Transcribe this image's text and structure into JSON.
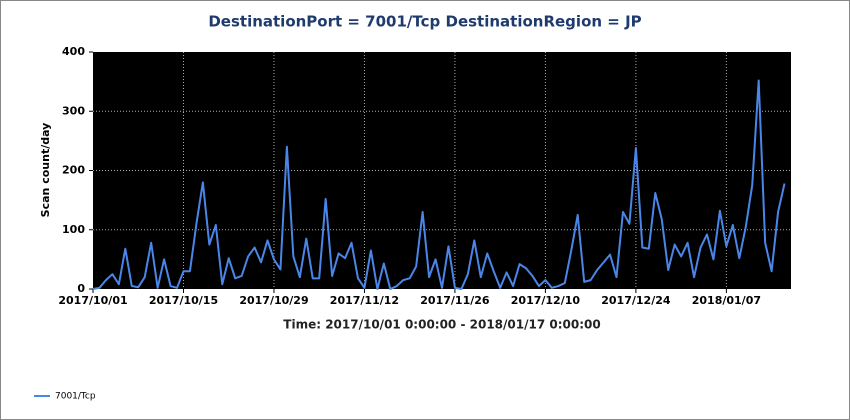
{
  "chart_data": {
    "type": "line",
    "title": "DestinationPort = 7001/Tcp  DestinationRegion = JP",
    "ylabel": "Scan count/day",
    "xlabel": "Time: 2017/10/01 0:00:00 - 2018/01/17 0:00:00",
    "x": [
      "2017/10/01",
      "2017/10/02",
      "2017/10/03",
      "2017/10/04",
      "2017/10/05",
      "2017/10/06",
      "2017/10/07",
      "2017/10/08",
      "2017/10/09",
      "2017/10/10",
      "2017/10/11",
      "2017/10/12",
      "2017/10/13",
      "2017/10/14",
      "2017/10/15",
      "2017/10/16",
      "2017/10/17",
      "2017/10/18",
      "2017/10/19",
      "2017/10/20",
      "2017/10/21",
      "2017/10/22",
      "2017/10/23",
      "2017/10/24",
      "2017/10/25",
      "2017/10/26",
      "2017/10/27",
      "2017/10/28",
      "2017/10/29",
      "2017/10/30",
      "2017/10/31",
      "2017/11/01",
      "2017/11/02",
      "2017/11/03",
      "2017/11/04",
      "2017/11/05",
      "2017/11/06",
      "2017/11/07",
      "2017/11/08",
      "2017/11/09",
      "2017/11/10",
      "2017/11/11",
      "2017/11/12",
      "2017/11/13",
      "2017/11/14",
      "2017/11/15",
      "2017/11/16",
      "2017/11/17",
      "2017/11/18",
      "2017/11/19",
      "2017/11/20",
      "2017/11/21",
      "2017/11/22",
      "2017/11/23",
      "2017/11/24",
      "2017/11/25",
      "2017/11/26",
      "2017/11/27",
      "2017/11/28",
      "2017/11/29",
      "2017/11/30",
      "2017/12/01",
      "2017/12/02",
      "2017/12/03",
      "2017/12/04",
      "2017/12/05",
      "2017/12/06",
      "2017/12/07",
      "2017/12/08",
      "2017/12/09",
      "2017/12/10",
      "2017/12/11",
      "2017/12/12",
      "2017/12/13",
      "2017/12/14",
      "2017/12/15",
      "2017/12/16",
      "2017/12/17",
      "2017/12/18",
      "2017/12/19",
      "2017/12/20",
      "2017/12/21",
      "2017/12/22",
      "2017/12/23",
      "2017/12/24",
      "2017/12/25",
      "2017/12/26",
      "2017/12/27",
      "2017/12/28",
      "2017/12/29",
      "2017/12/30",
      "2017/12/31",
      "2018/01/01",
      "2018/01/02",
      "2018/01/03",
      "2018/01/04",
      "2018/01/05",
      "2018/01/06",
      "2018/01/07",
      "2018/01/08",
      "2018/01/09",
      "2018/01/10",
      "2018/01/11",
      "2018/01/12",
      "2018/01/13",
      "2018/01/14",
      "2018/01/15",
      "2018/01/16"
    ],
    "series": [
      {
        "name": "7001/Tcp",
        "color": "#4a86e8",
        "values": [
          0,
          2,
          15,
          25,
          8,
          68,
          5,
          3,
          20,
          78,
          2,
          50,
          5,
          2,
          30,
          30,
          110,
          180,
          75,
          108,
          8,
          52,
          18,
          22,
          55,
          70,
          45,
          82,
          50,
          33,
          240,
          55,
          20,
          85,
          18,
          18,
          152,
          22,
          60,
          52,
          78,
          18,
          2,
          65,
          0,
          43,
          0,
          5,
          15,
          18,
          38,
          130,
          20,
          50,
          2,
          72,
          2,
          0,
          25,
          82,
          20,
          60,
          30,
          2,
          28,
          5,
          42,
          35,
          22,
          5,
          15,
          2,
          5,
          10,
          65,
          125,
          12,
          15,
          32,
          45,
          58,
          20,
          130,
          110,
          238,
          70,
          68,
          162,
          118,
          32,
          75,
          55,
          78,
          20,
          70,
          92,
          50,
          132,
          72,
          108,
          52,
          105,
          175,
          352,
          78,
          30,
          130,
          178
        ]
      }
    ],
    "xlim": [
      "2017/10/01",
      "2018/01/17"
    ],
    "xticks": [
      "2017/10/01",
      "2017/10/15",
      "2017/10/29",
      "2017/11/12",
      "2017/11/26",
      "2017/12/10",
      "2017/12/24",
      "2018/01/07"
    ],
    "ylim": [
      0,
      400
    ],
    "yticks": [
      0,
      100,
      200,
      300,
      400
    ],
    "grid": true,
    "legend": "bottom-left"
  }
}
